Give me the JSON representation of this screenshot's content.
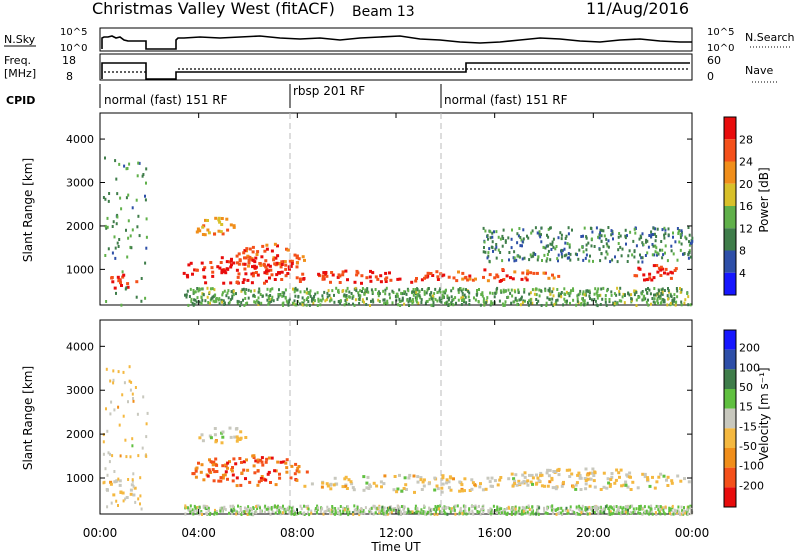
{
  "header": {
    "title": "Christmas Valley West (fitACF)",
    "beam": "Beam 13",
    "date": "11/Aug/2016"
  },
  "noise_panel": {
    "left_label": "N.Sky",
    "left_ticks": [
      "10^5",
      "10^0"
    ],
    "right_label": "N.Search",
    "right_ticks": [
      "10^5",
      "10^0"
    ]
  },
  "freq_panel": {
    "left_label_line1": "Freq.",
    "left_label_line2": "[MHz]",
    "left_ticks": [
      "18",
      "8"
    ],
    "right_label": "Nave",
    "right_ticks": [
      "60",
      "0"
    ]
  },
  "cpid": {
    "label": "CPID",
    "modes": [
      {
        "label": "normal (fast) 151 RF",
        "start_hour": 0
      },
      {
        "label": "rbsp 201 RF",
        "start_hour": 8
      },
      {
        "label": "normal (fast) 151 RF",
        "start_hour": 14
      }
    ]
  },
  "chart_data": [
    {
      "type": "heatmap",
      "name": "power",
      "xlabel": "",
      "ylabel": "Slant Range [km]",
      "xlim": [
        0,
        24
      ],
      "ylim": [
        180,
        4600
      ],
      "yticks": [
        "1000",
        "2000",
        "3000",
        "4000"
      ],
      "ytick_values": [
        1000,
        2000,
        3000,
        4000
      ],
      "colorbar_label": "Power [dB]",
      "colorbar_ticks": [
        "28",
        "24",
        "20",
        "16",
        "12",
        "8",
        "4"
      ],
      "colors": [
        "#1717ff",
        "#2e4fa8",
        "#3f7d4a",
        "#60b04a",
        "#d8c02a",
        "#f08e1a",
        "#f4501a",
        "#e80c0c"
      ],
      "scatter_regions": [
        {
          "from_hour": 0.1,
          "to_hour": 1.9,
          "from_km": 200,
          "to_km": 3600,
          "level": 0.35
        },
        {
          "from_hour": 3.4,
          "to_hour": 24,
          "from_km": 200,
          "to_km": 600,
          "level": 0.4
        },
        {
          "from_hour": 15.5,
          "to_hour": 24,
          "from_km": 1200,
          "to_km": 2000,
          "level": 0.3
        }
      ],
      "blobs": [
        {
          "hour": 0.9,
          "km": 750,
          "dh": 0.6,
          "dkm": 180,
          "level": 0.85
        },
        {
          "hour": 4.6,
          "km": 2000,
          "dh": 0.8,
          "dkm": 260,
          "level": 0.65
        },
        {
          "hour": 6.9,
          "km": 1300,
          "dh": 1.4,
          "dkm": 320,
          "level": 0.8
        },
        {
          "hour": 5.5,
          "km": 1000,
          "dh": 2.2,
          "dkm": 350,
          "level": 0.9
        },
        {
          "hour": 10.5,
          "km": 850,
          "dh": 3.5,
          "dkm": 150,
          "level": 0.9
        },
        {
          "hour": 16.0,
          "km": 900,
          "dh": 3.0,
          "dkm": 150,
          "level": 0.8
        },
        {
          "hour": 22.5,
          "km": 950,
          "dh": 1.0,
          "dkm": 200,
          "level": 0.9
        }
      ]
    },
    {
      "type": "heatmap",
      "name": "velocity",
      "xlabel": "Time UT",
      "ylabel": "Slant Range [km]",
      "xlim": [
        0,
        24
      ],
      "ylim": [
        180,
        4600
      ],
      "xticks": [
        "00:00",
        "04:00",
        "08:00",
        "12:00",
        "16:00",
        "20:00",
        "00:00"
      ],
      "xtick_values": [
        0,
        4,
        8,
        12,
        16,
        20,
        24
      ],
      "yticks": [
        "1000",
        "2000",
        "3000",
        "4000"
      ],
      "ytick_values": [
        1000,
        2000,
        3000,
        4000
      ],
      "colorbar_label": "Velocity [m s⁻¹]",
      "colorbar_ticks": [
        "200",
        "100",
        "50",
        "15",
        "-15",
        "-50",
        "-100",
        "-200"
      ],
      "colors": [
        "#e80c0c",
        "#f4501a",
        "#f08e1a",
        "#f4b840",
        "#c8c8be",
        "#60c040",
        "#3f7d4a",
        "#2e4fa8",
        "#1717ff"
      ],
      "scatter_regions": [
        {
          "from_hour": 0.1,
          "to_hour": 1.9,
          "from_km": 200,
          "to_km": 3600,
          "level": 0.45
        },
        {
          "from_hour": 3.4,
          "to_hour": 24,
          "from_km": 200,
          "to_km": 400,
          "level": 0.55
        }
      ],
      "blobs": [
        {
          "hour": 0.9,
          "km": 800,
          "dh": 0.7,
          "dkm": 220,
          "level": 0.45
        },
        {
          "hour": 5.0,
          "km": 2000,
          "dh": 1.2,
          "dkm": 180,
          "level": 0.45
        },
        {
          "hour": 6.0,
          "km": 1200,
          "dh": 2.5,
          "dkm": 350,
          "level": 0.2
        },
        {
          "hour": 13.0,
          "km": 900,
          "dh": 5.0,
          "dkm": 200,
          "level": 0.45
        },
        {
          "hour": 20.0,
          "km": 1000,
          "dh": 4.0,
          "dkm": 250,
          "level": 0.45
        }
      ]
    }
  ]
}
